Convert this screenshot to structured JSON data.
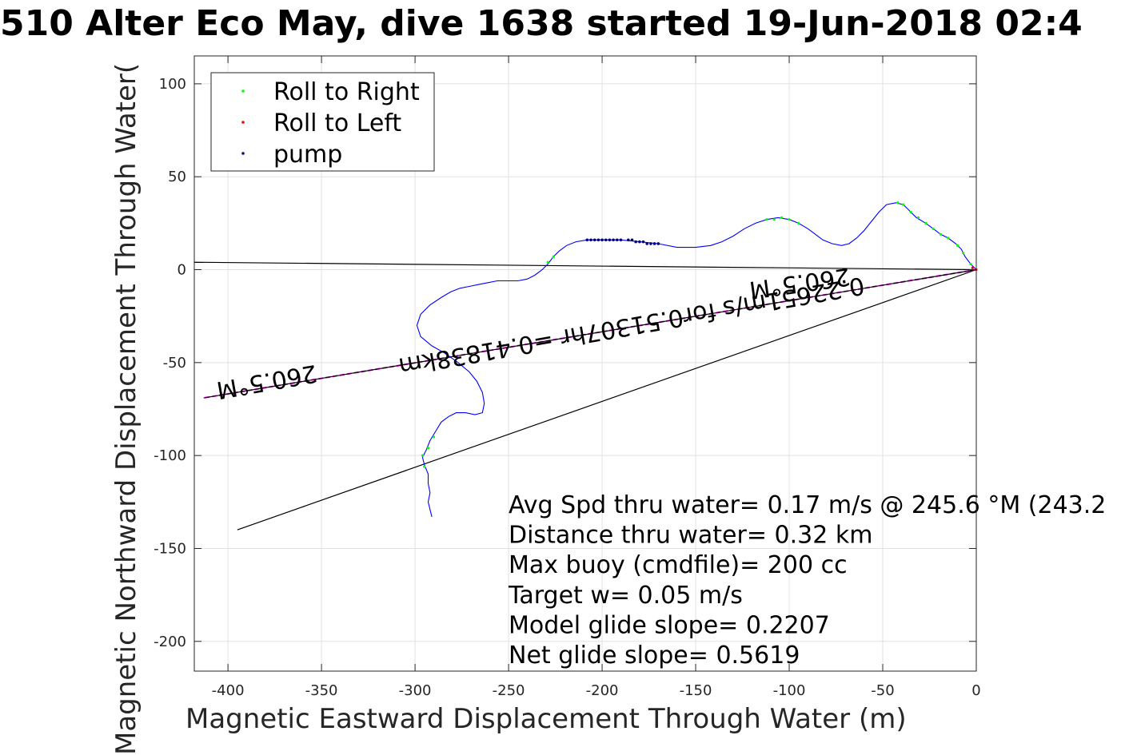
{
  "chart_data": {
    "type": "scatter",
    "title": "510 Alter Eco May, dive 1638 started 19-Jun-2018 02:4",
    "xlabel": "Magnetic Eastward Displacement Through Water (m)",
    "ylabel": "Magnetic Northward Displacement Through Water(",
    "xlim": [
      -418,
      0
    ],
    "ylim": [
      -216,
      115
    ],
    "xticks": [
      -400,
      -350,
      -300,
      -250,
      -200,
      -150,
      -100,
      -50,
      0
    ],
    "yticks": [
      -200,
      -150,
      -100,
      -50,
      0,
      50,
      100
    ],
    "grid": true,
    "legend_position": "top-left",
    "legend": [
      {
        "label": "Roll to Right",
        "color": "#00ff00"
      },
      {
        "label": "Roll to Left",
        "color": "#ff0000"
      },
      {
        "label": "pump",
        "color": "#000080"
      }
    ],
    "track": {
      "name": "track",
      "color": "#0000ff",
      "points": [
        [
          0,
          0
        ],
        [
          -3,
          3
        ],
        [
          -6,
          7
        ],
        [
          -8,
          11
        ],
        [
          -11,
          14
        ],
        [
          -15,
          17
        ],
        [
          -19,
          19
        ],
        [
          -23,
          22
        ],
        [
          -27,
          25
        ],
        [
          -32,
          28
        ],
        [
          -36,
          32
        ],
        [
          -39,
          35
        ],
        [
          -43,
          36
        ],
        [
          -48,
          35
        ],
        [
          -52,
          31
        ],
        [
          -56,
          26
        ],
        [
          -60,
          21
        ],
        [
          -64,
          17
        ],
        [
          -68,
          14
        ],
        [
          -72,
          13
        ],
        [
          -77,
          14
        ],
        [
          -82,
          16
        ],
        [
          -86,
          19
        ],
        [
          -90,
          22
        ],
        [
          -95,
          25
        ],
        [
          -100,
          27
        ],
        [
          -106,
          28
        ],
        [
          -112,
          27
        ],
        [
          -118,
          25
        ],
        [
          -124,
          22
        ],
        [
          -130,
          18
        ],
        [
          -136,
          15
        ],
        [
          -142,
          13
        ],
        [
          -150,
          12
        ],
        [
          -160,
          12
        ],
        [
          -170,
          14
        ],
        [
          -180,
          15
        ],
        [
          -190,
          16
        ],
        [
          -200,
          16
        ],
        [
          -208,
          16
        ],
        [
          -214,
          15
        ],
        [
          -219,
          13
        ],
        [
          -223,
          10
        ],
        [
          -226,
          7
        ],
        [
          -229,
          3
        ],
        [
          -232,
          0
        ],
        [
          -236,
          -3
        ],
        [
          -240,
          -5
        ],
        [
          -245,
          -6
        ],
        [
          -250,
          -6
        ],
        [
          -256,
          -6
        ],
        [
          -261,
          -7
        ],
        [
          -266,
          -8
        ],
        [
          -271,
          -9
        ],
        [
          -276,
          -10
        ],
        [
          -281,
          -12
        ],
        [
          -286,
          -15
        ],
        [
          -292,
          -19
        ],
        [
          -297,
          -24
        ],
        [
          -299,
          -30
        ],
        [
          -297,
          -36
        ],
        [
          -291,
          -41
        ],
        [
          -284,
          -45
        ],
        [
          -277,
          -50
        ],
        [
          -271,
          -55
        ],
        [
          -267,
          -60
        ],
        [
          -264,
          -66
        ],
        [
          -263,
          -72
        ],
        [
          -264,
          -77
        ],
        [
          -268,
          -78
        ],
        [
          -273,
          -77
        ],
        [
          -278,
          -77
        ],
        [
          -282,
          -79
        ],
        [
          -286,
          -82
        ],
        [
          -289,
          -87
        ],
        [
          -292,
          -92
        ],
        [
          -294,
          -97
        ],
        [
          -296,
          -101
        ],
        [
          -295,
          -105
        ],
        [
          -293,
          -110
        ],
        [
          -293,
          -115
        ],
        [
          -292,
          -120
        ],
        [
          -293,
          -125
        ],
        [
          -292,
          -129
        ],
        [
          -291,
          -133
        ]
      ]
    },
    "roll_right": [
      [
        -3,
        3
      ],
      [
        -7,
        9
      ],
      [
        -10,
        13
      ],
      [
        -15,
        17
      ],
      [
        -19,
        19
      ],
      [
        -23,
        22
      ],
      [
        -27,
        25
      ],
      [
        -31,
        28
      ],
      [
        -35,
        31
      ],
      [
        -39,
        35
      ],
      [
        -42,
        36
      ],
      [
        -95,
        25
      ],
      [
        -100,
        27
      ],
      [
        -104,
        28
      ],
      [
        -108,
        27
      ],
      [
        -112,
        27
      ],
      [
        -226,
        7
      ],
      [
        -229,
        4
      ],
      [
        -290,
        -90
      ],
      [
        -293,
        -96
      ],
      [
        -296,
        -100
      ],
      [
        -295,
        -106
      ]
    ],
    "roll_left": [
      [
        0,
        0
      ],
      [
        -2,
        1
      ]
    ],
    "pump": [
      [
        -170,
        14
      ],
      [
        -172,
        14
      ],
      [
        -174,
        14
      ],
      [
        -176,
        14
      ],
      [
        -178,
        15
      ],
      [
        -180,
        15
      ],
      [
        -182,
        15
      ],
      [
        -184,
        16
      ],
      [
        -186,
        16
      ],
      [
        -190,
        16
      ],
      [
        -192,
        16
      ],
      [
        -194,
        16
      ],
      [
        -196,
        16
      ],
      [
        -198,
        16
      ],
      [
        -200,
        16
      ],
      [
        -202,
        16
      ],
      [
        -204,
        16
      ],
      [
        -206,
        16
      ],
      [
        -208,
        16
      ]
    ],
    "lines": [
      {
        "name": "heading-line-1",
        "color": "#000000",
        "x": [
          0,
          -418
        ],
        "y": [
          0,
          4
        ]
      },
      {
        "name": "heading-line-2",
        "color": "#000000",
        "x": [
          0,
          -395
        ],
        "y": [
          0,
          -140
        ]
      },
      {
        "name": "net-track-line",
        "color": "#ff00ff",
        "dashed": true,
        "x": [
          0,
          -413
        ],
        "y": [
          0,
          -69
        ]
      },
      {
        "name": "net-track-line-under",
        "color": "#000000",
        "x": [
          0,
          -413
        ],
        "y": [
          0,
          -69
        ]
      }
    ],
    "annotations": [
      {
        "name": "heading-label-right",
        "text": "260.5°M",
        "x": -95,
        "y": -3,
        "rotate": 172
      },
      {
        "name": "speed-label",
        "text": "0.22651m/s for0.51307hr =0.41838km",
        "x": -185,
        "y": -26,
        "rotate": 170
      },
      {
        "name": "heading-label-left",
        "text": "260.5°M",
        "x": -380,
        "y": -56,
        "rotate": 170
      }
    ],
    "stats": [
      "Avg Spd thru water=  0.17 m/s @ 245.6 °M (243.2",
      "Distance thru water=  0.32 km",
      "Max buoy (cmdfile)= 200 cc",
      "Target w= 0.05 m/s",
      "Model glide slope= 0.2207",
      "Net glide slope= 0.5619"
    ]
  }
}
